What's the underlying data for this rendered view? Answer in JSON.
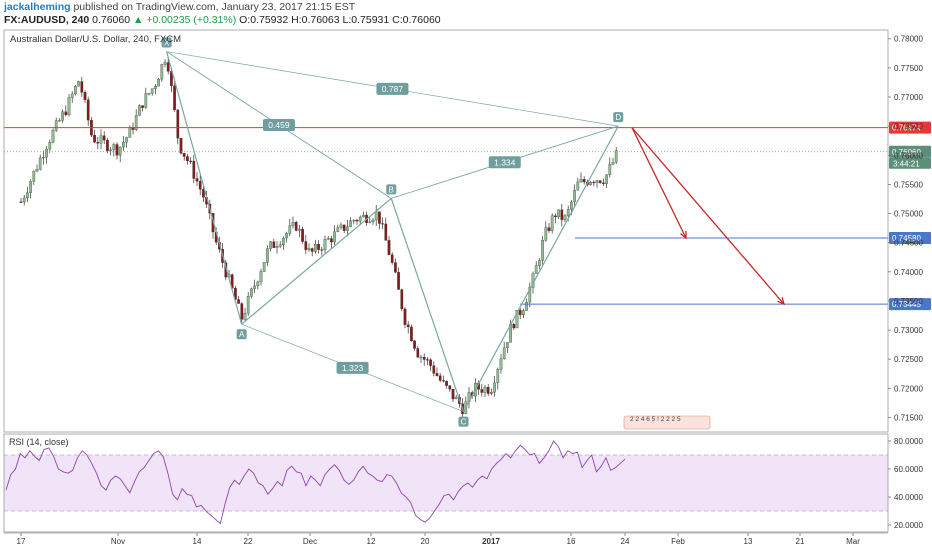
{
  "header": {
    "author": "jackalheming",
    "published": " published on TradingView.com, January 23, 2017 21:15 EST",
    "symbol": "FX:AUDUSD, 240",
    "price": "0.76060",
    "change": "+0.00235 (+0.31%)",
    "ohlc_o_label": "O:",
    "ohlc_o": "0.75932",
    "ohlc_h_label": "H:",
    "ohlc_h": "0.76063",
    "ohlc_l_label": "L:",
    "ohlc_l": "0.75931",
    "ohlc_c_label": "C:",
    "ohlc_c": "0.76060"
  },
  "chart_data": [
    {
      "type": "candlestick",
      "title": "Australian Dollar/U.S. Dollar, 240, FXCM",
      "y_ticks": [
        "0.78000",
        "0.77500",
        "0.77000",
        "0.76500",
        "0.76000",
        "0.75500",
        "0.75000",
        "0.74500",
        "0.74000",
        "0.73500",
        "0.73000",
        "0.72500",
        "0.72000",
        "0.71500"
      ],
      "ylim": [
        0.7125,
        0.7815
      ],
      "x_ticks": [
        "17",
        "Nov",
        "14",
        "22",
        "Dec",
        "12",
        "20",
        "2017",
        "16",
        "24",
        "Feb",
        "13",
        "21",
        "Mar"
      ],
      "price_path": [
        {
          "x": "Oct 17",
          "y": 0.752
        },
        {
          "x": "Oct 21",
          "y": 0.762
        },
        {
          "x": "Oct 24",
          "y": 0.768
        },
        {
          "x": "Oct 26",
          "y": 0.773
        },
        {
          "x": "Oct 28",
          "y": 0.763
        },
        {
          "x": "Nov 1",
          "y": 0.761
        },
        {
          "x": "Nov 3",
          "y": 0.764
        },
        {
          "x": "Nov 5",
          "y": 0.769
        },
        {
          "x": "Nov 7",
          "y": 0.772
        },
        {
          "x": "Nov 9",
          "y": 0.7775
        },
        {
          "x": "Nov 11",
          "y": 0.762
        },
        {
          "x": "Nov 13",
          "y": 0.758
        },
        {
          "x": "Nov 15",
          "y": 0.753
        },
        {
          "x": "Nov 17",
          "y": 0.745
        },
        {
          "x": "Nov 21",
          "y": 0.732
        },
        {
          "x": "Nov 25",
          "y": 0.744
        },
        {
          "x": "Nov 29",
          "y": 0.748
        },
        {
          "x": "Dec 1",
          "y": 0.743
        },
        {
          "x": "Dec 5",
          "y": 0.746
        },
        {
          "x": "Dec 9",
          "y": 0.749
        },
        {
          "x": "Dec 13",
          "y": 0.75
        },
        {
          "x": "Dec 15",
          "y": 0.742
        },
        {
          "x": "Dec 17",
          "y": 0.732
        },
        {
          "x": "Dec 19",
          "y": 0.726
        },
        {
          "x": "Dec 21",
          "y": 0.724
        },
        {
          "x": "Dec 23",
          "y": 0.721
        },
        {
          "x": "Dec 27",
          "y": 0.7165
        },
        {
          "x": "Dec 29",
          "y": 0.72
        },
        {
          "x": "Jan 1",
          "y": 0.72
        },
        {
          "x": "Jan 3",
          "y": 0.726
        },
        {
          "x": "Jan 5",
          "y": 0.731
        },
        {
          "x": "Jan 7",
          "y": 0.734
        },
        {
          "x": "Jan 9",
          "y": 0.739
        },
        {
          "x": "Jan 11",
          "y": 0.746
        },
        {
          "x": "Jan 13",
          "y": 0.75
        },
        {
          "x": "Jan 15",
          "y": 0.749
        },
        {
          "x": "Jan 17",
          "y": 0.755
        },
        {
          "x": "Jan 19",
          "y": 0.756
        },
        {
          "x": "Jan 21",
          "y": 0.756
        },
        {
          "x": "Jan 23",
          "y": 0.7606
        }
      ],
      "pattern": {
        "points": [
          {
            "label": "X",
            "x": "Nov 9",
            "y": 0.7778
          },
          {
            "label": "A",
            "x": "Nov 21",
            "y": 0.731
          },
          {
            "label": "B",
            "x": "Dec 15",
            "y": 0.7526
          },
          {
            "label": "C",
            "x": "Dec 27",
            "y": 0.716
          },
          {
            "label": "D",
            "x": "Jan 23",
            "y": 0.765
          }
        ],
        "ratios": [
          {
            "label": "0.787",
            "between": "X-D"
          },
          {
            "label": "0.459",
            "between": "X-B"
          },
          {
            "label": "1.334",
            "between": "B-D"
          },
          {
            "label": "1.323",
            "between": "A-C"
          }
        ]
      },
      "levels": [
        {
          "value": "0.76474",
          "color": "#e53935"
        },
        {
          "value": "0.74580",
          "color": "#4a78c8"
        },
        {
          "value": "0.73445",
          "color": "#4a78c8"
        }
      ],
      "last_price": "0.76060",
      "countdown": "3:44:21",
      "events_marker": "2 2 4 6 5 ! 2 2 2 5",
      "colors": {
        "up": "#8fbc8f",
        "down": "#8b1a1a",
        "pattern": "#7aa6a6",
        "arrow": "#c62828"
      }
    },
    {
      "type": "line",
      "title": "RSI (14, close)",
      "y_ticks": [
        "80.0000",
        "60.0000",
        "40.0000",
        "20.0000"
      ],
      "ylim": [
        15,
        85
      ],
      "band": [
        30,
        70
      ],
      "values": [
        45,
        56,
        60,
        71,
        68,
        73,
        69,
        66,
        74,
        75,
        69,
        60,
        58,
        57,
        59,
        68,
        73,
        70,
        64,
        57,
        48,
        45,
        52,
        55,
        53,
        48,
        43,
        51,
        58,
        61,
        66,
        71,
        73,
        69,
        57,
        42,
        38,
        46,
        42,
        41,
        33,
        34,
        30,
        27,
        24,
        21,
        35,
        47,
        52,
        49,
        55,
        60,
        57,
        50,
        48,
        42,
        46,
        51,
        48,
        59,
        62,
        58,
        57,
        48,
        55,
        52,
        48,
        56,
        60,
        63,
        59,
        52,
        49,
        52,
        58,
        62,
        57,
        55,
        52,
        51,
        56,
        55,
        50,
        43,
        40,
        36,
        27,
        24,
        22,
        25,
        30,
        35,
        41,
        42,
        38,
        44,
        48,
        50,
        47,
        52,
        55,
        53,
        60,
        64,
        67,
        71,
        68,
        73,
        77,
        74,
        70,
        71,
        64,
        68,
        73,
        80,
        76,
        68,
        73,
        71,
        72,
        61,
        66,
        70,
        58,
        62,
        68,
        59,
        61,
        64,
        67
      ]
    }
  ]
}
